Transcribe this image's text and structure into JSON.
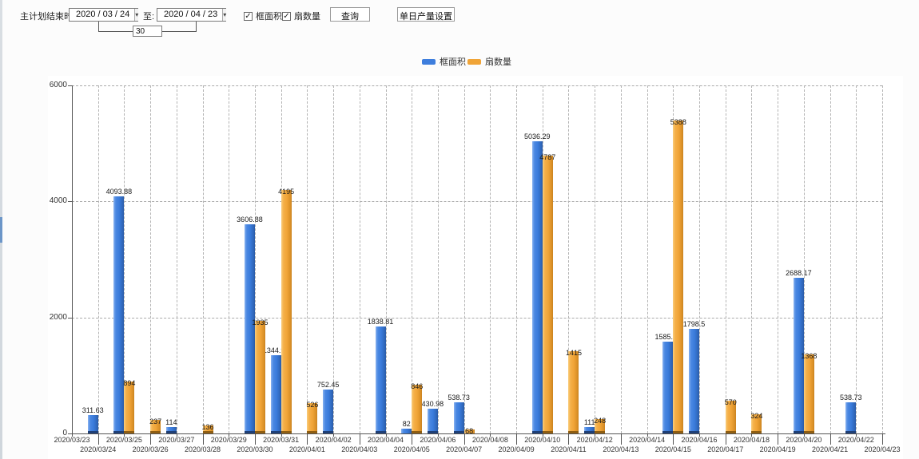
{
  "toolbar": {
    "plan_end_label": "主计划结束时间:",
    "date_from": "2020 / 03 / 24",
    "to_label": "至:",
    "date_to": "2020 / 04 / 23",
    "interval_days": "30",
    "checkbox_area": {
      "label": "框面积",
      "checked": "✓"
    },
    "checkbox_fans": {
      "label": "扇数量",
      "checked": "✓"
    },
    "query_button": "查询",
    "daily_output_button": "单日产量设置",
    "dropdown_arrow": "▾"
  },
  "legend": [
    {
      "label": "框面积",
      "color": "#3e7edd"
    },
    {
      "label": "扇数量",
      "color": "#f0a437"
    }
  ],
  "chart_data": {
    "type": "bar",
    "title": "",
    "xlabel": "",
    "ylabel": "",
    "ylim": [
      0,
      6000
    ],
    "yticks": [
      0,
      2000,
      4000,
      6000
    ],
    "grid": "dashed",
    "legend_position": "top-center",
    "categories": [
      "2020/03/23",
      "2020/03/24",
      "2020/03/25",
      "2020/03/26",
      "2020/03/27",
      "2020/03/28",
      "2020/03/29",
      "2020/03/30",
      "2020/03/31",
      "2020/04/01",
      "2020/04/02",
      "2020/04/03",
      "2020/04/04",
      "2020/04/05",
      "2020/04/06",
      "2020/04/07",
      "2020/04/08",
      "2020/04/09",
      "2020/04/10",
      "2020/04/11",
      "2020/04/12",
      "2020/04/13",
      "2020/04/14",
      "2020/04/15",
      "2020/04/16",
      "2020/04/17",
      "2020/04/18",
      "2020/04/19",
      "2020/04/20",
      "2020/04/21",
      "2020/04/22",
      "2020/04/23"
    ],
    "series": [
      {
        "name": "框面积",
        "color": "#3e7edd",
        "values": [
          null,
          311.63,
          4093.88,
          null,
          114,
          null,
          null,
          3606.88,
          1344.95,
          null,
          752.45,
          null,
          1838.81,
          82,
          430.98,
          538.73,
          null,
          null,
          5036.29,
          null,
          111,
          null,
          null,
          1585.96,
          1798.5,
          null,
          null,
          null,
          2688.17,
          null,
          538.73,
          null
        ]
      },
      {
        "name": "扇数量",
        "color": "#f0a437",
        "values": [
          null,
          null,
          894,
          237,
          null,
          136,
          null,
          1935,
          4195,
          526,
          null,
          null,
          null,
          846,
          null,
          68,
          null,
          null,
          4787,
          1415,
          248,
          null,
          null,
          5388,
          null,
          570,
          324,
          null,
          1368,
          null,
          null,
          null
        ]
      }
    ]
  }
}
